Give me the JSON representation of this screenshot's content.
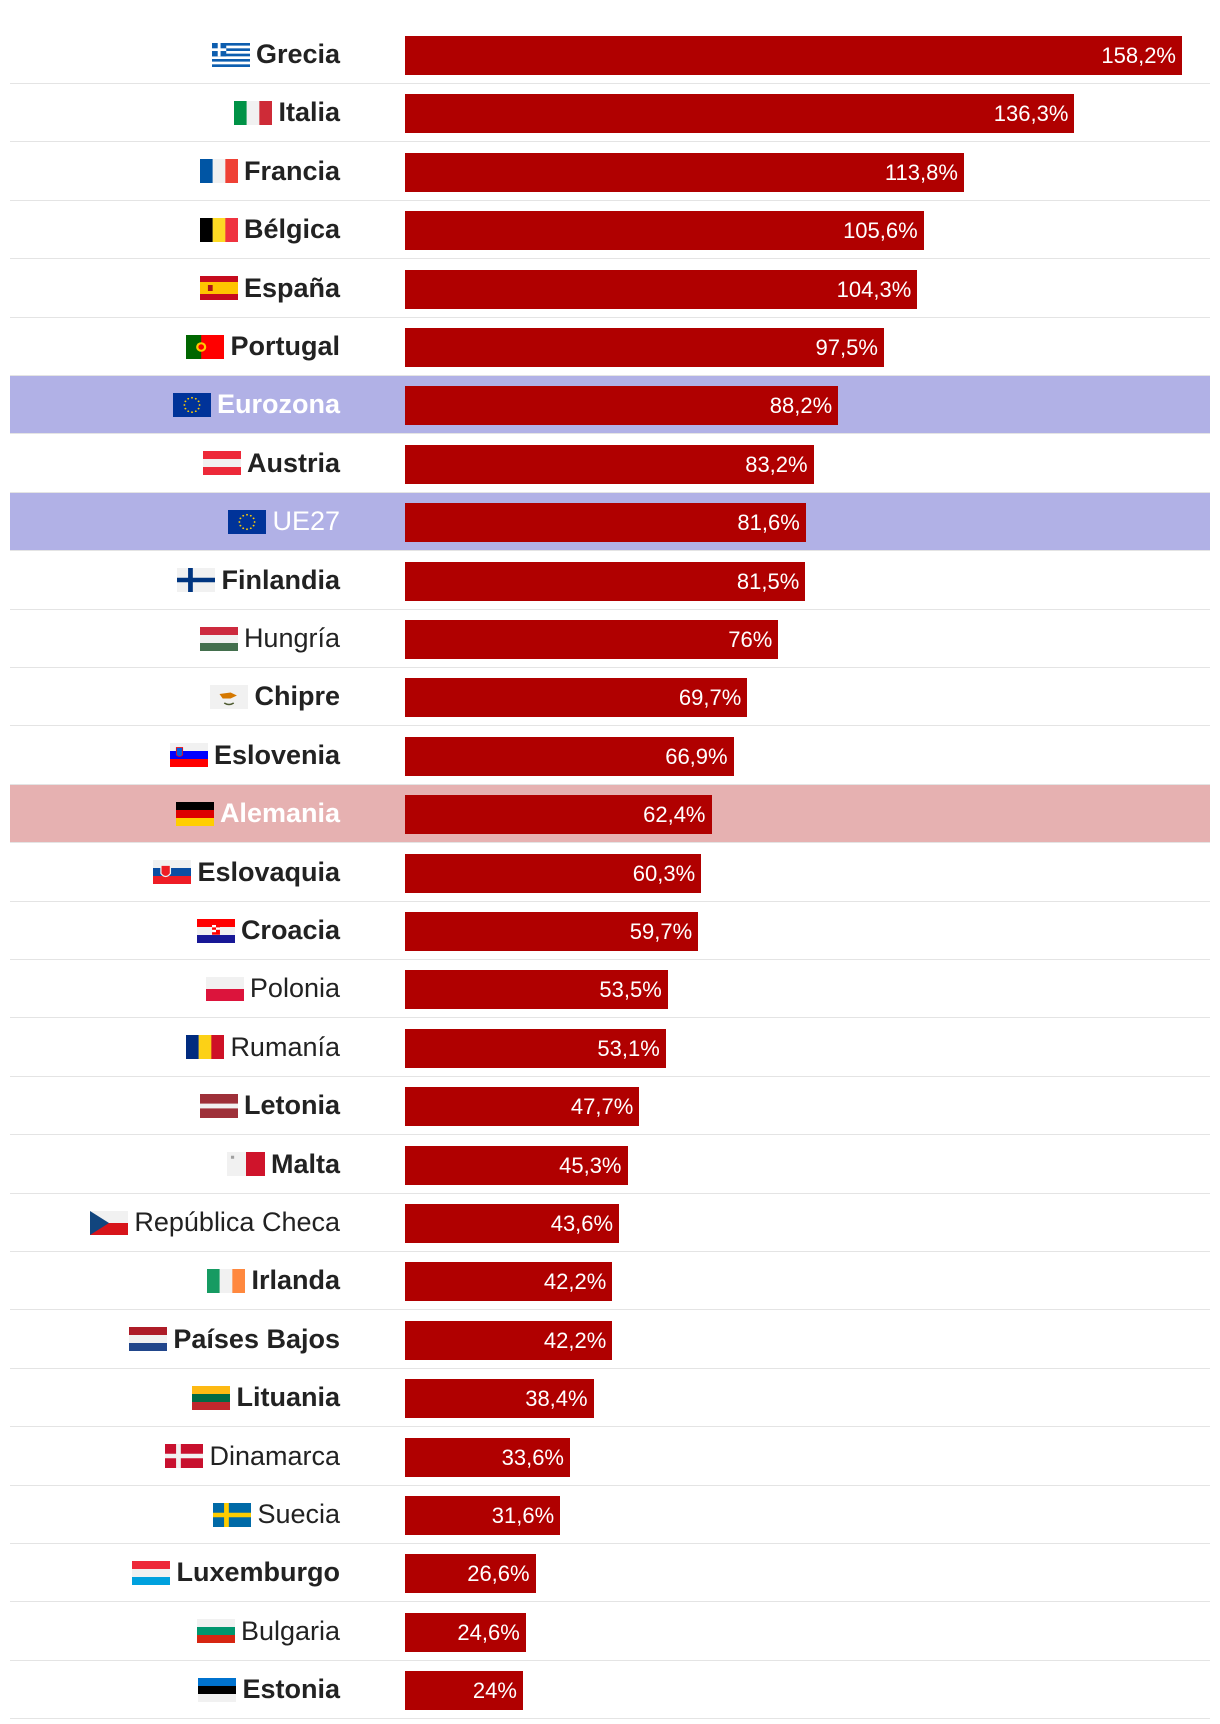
{
  "chart_data": {
    "type": "bar",
    "orientation": "horizontal",
    "title": "",
    "xlabel": "",
    "ylabel": "",
    "xlim": [
      0,
      158.2
    ],
    "bar_color": "#b00000",
    "highlight_colors": {
      "aggregate": "#b1b1e6",
      "germany": "#e6b1b1"
    },
    "rows": [
      {
        "name": "Grecia",
        "value": 158.2,
        "label": "158,2%",
        "flag": "greece-flag",
        "bold": true,
        "highlight": ""
      },
      {
        "name": "Italia",
        "value": 136.3,
        "label": "136,3%",
        "flag": "italy-flag",
        "bold": true,
        "highlight": ""
      },
      {
        "name": "Francia",
        "value": 113.8,
        "label": "113,8%",
        "flag": "france-flag",
        "bold": true,
        "highlight": ""
      },
      {
        "name": "Bélgica",
        "value": 105.6,
        "label": "105,6%",
        "flag": "belgium-flag",
        "bold": true,
        "highlight": ""
      },
      {
        "name": "España",
        "value": 104.3,
        "label": "104,3%",
        "flag": "spain-flag",
        "bold": true,
        "highlight": ""
      },
      {
        "name": "Portugal",
        "value": 97.5,
        "label": "97,5%",
        "flag": "portugal-flag",
        "bold": true,
        "highlight": ""
      },
      {
        "name": "Eurozona",
        "value": 88.2,
        "label": "88,2%",
        "flag": "eu-flag",
        "bold": true,
        "highlight": "eu"
      },
      {
        "name": "Austria",
        "value": 83.2,
        "label": "83,2%",
        "flag": "austria-flag",
        "bold": true,
        "highlight": ""
      },
      {
        "name": "UE27",
        "value": 81.6,
        "label": "81,6%",
        "flag": "eu-flag",
        "bold": false,
        "highlight": "eu"
      },
      {
        "name": "Finlandia",
        "value": 81.5,
        "label": "81,5%",
        "flag": "finland-flag",
        "bold": true,
        "highlight": ""
      },
      {
        "name": "Hungría",
        "value": 76,
        "label": "76%",
        "flag": "hungary-flag",
        "bold": false,
        "highlight": ""
      },
      {
        "name": "Chipre",
        "value": 69.7,
        "label": "69,7%",
        "flag": "cyprus-flag",
        "bold": true,
        "highlight": ""
      },
      {
        "name": "Eslovenia",
        "value": 66.9,
        "label": "66,9%",
        "flag": "slovenia-flag",
        "bold": true,
        "highlight": ""
      },
      {
        "name": "Alemania",
        "value": 62.4,
        "label": "62,4%",
        "flag": "germany-flag",
        "bold": true,
        "highlight": "de"
      },
      {
        "name": "Eslovaquia",
        "value": 60.3,
        "label": "60,3%",
        "flag": "slovakia-flag",
        "bold": true,
        "highlight": ""
      },
      {
        "name": "Croacia",
        "value": 59.7,
        "label": "59,7%",
        "flag": "croatia-flag",
        "bold": true,
        "highlight": ""
      },
      {
        "name": "Polonia",
        "value": 53.5,
        "label": "53,5%",
        "flag": "poland-flag",
        "bold": false,
        "highlight": ""
      },
      {
        "name": "Rumanía",
        "value": 53.1,
        "label": "53,1%",
        "flag": "romania-flag",
        "bold": false,
        "highlight": ""
      },
      {
        "name": "Letonia",
        "value": 47.7,
        "label": "47,7%",
        "flag": "latvia-flag",
        "bold": true,
        "highlight": ""
      },
      {
        "name": "Malta",
        "value": 45.3,
        "label": "45,3%",
        "flag": "malta-flag",
        "bold": true,
        "highlight": ""
      },
      {
        "name": "República Checa",
        "value": 43.6,
        "label": "43,6%",
        "flag": "czech-flag",
        "bold": false,
        "highlight": ""
      },
      {
        "name": "Irlanda",
        "value": 42.2,
        "label": "42,2%",
        "flag": "ireland-flag",
        "bold": true,
        "highlight": ""
      },
      {
        "name": "Países Bajos",
        "value": 42.2,
        "label": "42,2%",
        "flag": "netherlands-flag",
        "bold": true,
        "highlight": ""
      },
      {
        "name": "Lituania",
        "value": 38.4,
        "label": "38,4%",
        "flag": "lithuania-flag",
        "bold": true,
        "highlight": ""
      },
      {
        "name": "Dinamarca",
        "value": 33.6,
        "label": "33,6%",
        "flag": "denmark-flag",
        "bold": false,
        "highlight": ""
      },
      {
        "name": "Suecia",
        "value": 31.6,
        "label": "31,6%",
        "flag": "sweden-flag",
        "bold": false,
        "highlight": ""
      },
      {
        "name": "Luxemburgo",
        "value": 26.6,
        "label": "26,6%",
        "flag": "luxembourg-flag",
        "bold": true,
        "highlight": ""
      },
      {
        "name": "Bulgaria",
        "value": 24.6,
        "label": "24,6%",
        "flag": "bulgaria-flag",
        "bold": false,
        "highlight": ""
      },
      {
        "name": "Estonia",
        "value": 24,
        "label": "24%",
        "flag": "estonia-flag",
        "bold": true,
        "highlight": ""
      }
    ]
  }
}
